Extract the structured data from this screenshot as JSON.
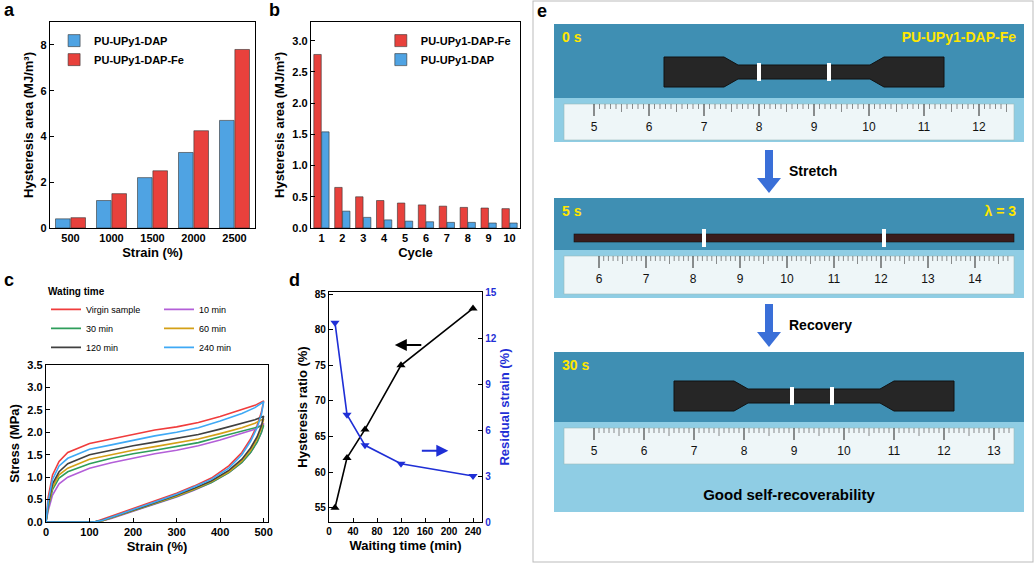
{
  "chart_data": [
    {
      "panel": "a",
      "type": "bar",
      "categories": [
        "500",
        "1000",
        "1500",
        "2000",
        "2500"
      ],
      "x_label": "Strain (%)",
      "y_label": "Hysteresis area (MJ/m³)",
      "ylim": [
        0,
        9
      ],
      "yticks": [
        0,
        2,
        4,
        6,
        8
      ],
      "legend": "top left",
      "grid": false,
      "series": [
        {
          "name": "PU-UPy1-DAP",
          "color": "#4fa3e3",
          "values": [
            0.4,
            1.2,
            2.2,
            3.3,
            4.7
          ]
        },
        {
          "name": "PU-UPy1-DAP-Fe",
          "color": "#e8413c",
          "values": [
            0.45,
            1.5,
            2.5,
            4.25,
            7.8
          ]
        }
      ]
    },
    {
      "panel": "b",
      "type": "bar",
      "categories": [
        "1",
        "2",
        "3",
        "4",
        "5",
        "6",
        "7",
        "8",
        "9",
        "10"
      ],
      "x_label": "Cycle",
      "y_label": "Hysteresis area (MJ/m³)",
      "ylim": [
        0,
        3.3
      ],
      "yticks": [
        {
          "value": 0,
          "label": "0.0"
        },
        {
          "value": 0.5,
          "label": "0.5"
        },
        {
          "value": 1,
          "label": "1.0"
        },
        {
          "value": 1.5,
          "label": "1.5"
        },
        {
          "value": 2,
          "label": "2.0"
        },
        {
          "value": 2.5,
          "label": "2.5"
        },
        {
          "value": 3,
          "label": "3.0"
        }
      ],
      "legend": "top right",
      "grid": false,
      "series": [
        {
          "name": "PU-UPy1-DAP-Fe",
          "color": "#e8413c",
          "values": [
            2.78,
            0.65,
            0.5,
            0.44,
            0.4,
            0.37,
            0.35,
            0.33,
            0.32,
            0.31
          ]
        },
        {
          "name": "PU-UPy1-DAP",
          "color": "#4fa3e3",
          "values": [
            1.54,
            0.27,
            0.17,
            0.13,
            0.11,
            0.1,
            0.09,
            0.09,
            0.08,
            0.08
          ]
        }
      ]
    },
    {
      "panel": "c",
      "type": "line",
      "x_label": "Strain (%)",
      "y_label": "Stress (MPa)",
      "xlim": [
        0,
        510
      ],
      "xticks": [
        0,
        100,
        200,
        300,
        400,
        500
      ],
      "ylim": [
        0,
        3.5
      ],
      "yticks": [
        {
          "value": 0,
          "label": "0.0"
        },
        {
          "value": 0.5,
          "label": "0.5"
        },
        {
          "value": 1,
          "label": "1.0"
        },
        {
          "value": 1.5,
          "label": "1.5"
        },
        {
          "value": 2,
          "label": "2.0"
        },
        {
          "value": 2.5,
          "label": "2.5"
        },
        {
          "value": 3,
          "label": "3.0"
        },
        {
          "value": 3.5,
          "label": "3.5"
        }
      ],
      "legend": "top",
      "legend_title": "Wating time",
      "grid": false,
      "series": [
        {
          "name": "Virgin sample",
          "color": "#f03c3c",
          "x": [
            0,
            5,
            15,
            30,
            50,
            100,
            150,
            200,
            250,
            300,
            350,
            400,
            450,
            480,
            500,
            495,
            485,
            470,
            450,
            420,
            380,
            340,
            300,
            260,
            220,
            180,
            150,
            130,
            115,
            108,
            0
          ],
          "values": [
            0,
            0.55,
            1.05,
            1.35,
            1.55,
            1.75,
            1.85,
            1.95,
            2.05,
            2.12,
            2.22,
            2.35,
            2.5,
            2.6,
            2.7,
            2.45,
            2.15,
            1.85,
            1.55,
            1.25,
            0.98,
            0.8,
            0.64,
            0.5,
            0.36,
            0.22,
            0.12,
            0.05,
            0.01,
            0,
            0
          ]
        },
        {
          "name": "10 min",
          "color": "#b35fd8",
          "x": [
            0,
            5,
            15,
            30,
            50,
            100,
            150,
            200,
            250,
            300,
            350,
            400,
            450,
            480,
            500,
            495,
            485,
            470,
            450,
            420,
            380,
            340,
            300,
            260,
            220,
            180,
            150,
            130,
            115,
            108,
            0
          ],
          "values": [
            0,
            0.25,
            0.6,
            0.85,
            1.0,
            1.2,
            1.32,
            1.42,
            1.52,
            1.6,
            1.7,
            1.83,
            1.97,
            2.07,
            2.2,
            2.0,
            1.78,
            1.55,
            1.33,
            1.1,
            0.88,
            0.71,
            0.56,
            0.43,
            0.3,
            0.17,
            0.08,
            0.03,
            0.01,
            0,
            0
          ]
        },
        {
          "name": "30 min",
          "color": "#2e9e5b",
          "x": [
            0,
            5,
            15,
            30,
            50,
            100,
            150,
            200,
            250,
            300,
            350,
            400,
            450,
            480,
            500,
            495,
            485,
            470,
            450,
            420,
            380,
            340,
            300,
            260,
            220,
            180,
            150,
            130,
            115,
            108,
            0
          ],
          "values": [
            0,
            0.32,
            0.72,
            0.98,
            1.12,
            1.3,
            1.42,
            1.52,
            1.6,
            1.68,
            1.77,
            1.9,
            2.02,
            2.1,
            2.15,
            2.0,
            1.78,
            1.55,
            1.33,
            1.1,
            0.88,
            0.72,
            0.57,
            0.44,
            0.31,
            0.18,
            0.08,
            0.03,
            0.01,
            0,
            0
          ]
        },
        {
          "name": "60 min",
          "color": "#d4a017",
          "x": [
            0,
            5,
            15,
            30,
            50,
            100,
            150,
            200,
            250,
            300,
            350,
            400,
            450,
            480,
            500,
            495,
            485,
            470,
            450,
            420,
            380,
            340,
            300,
            260,
            220,
            180,
            150,
            130,
            115,
            108,
            0
          ],
          "values": [
            0,
            0.35,
            0.78,
            1.05,
            1.2,
            1.4,
            1.5,
            1.6,
            1.68,
            1.76,
            1.85,
            1.97,
            2.1,
            2.2,
            2.3,
            2.1,
            1.85,
            1.6,
            1.36,
            1.12,
            0.9,
            0.73,
            0.58,
            0.45,
            0.32,
            0.19,
            0.09,
            0.03,
            0.01,
            0,
            0
          ]
        },
        {
          "name": "120 min",
          "color": "#404040",
          "x": [
            0,
            5,
            15,
            30,
            50,
            100,
            150,
            200,
            250,
            300,
            350,
            400,
            450,
            480,
            500,
            495,
            485,
            470,
            450,
            420,
            380,
            340,
            300,
            260,
            220,
            180,
            150,
            130,
            115,
            108,
            0
          ],
          "values": [
            0,
            0.4,
            0.85,
            1.12,
            1.3,
            1.5,
            1.6,
            1.7,
            1.78,
            1.86,
            1.95,
            2.07,
            2.2,
            2.28,
            2.36,
            2.15,
            1.9,
            1.65,
            1.4,
            1.15,
            0.92,
            0.75,
            0.6,
            0.46,
            0.33,
            0.2,
            0.1,
            0.04,
            0.01,
            0,
            0
          ]
        },
        {
          "name": "240 min",
          "color": "#3fa9f5",
          "x": [
            0,
            5,
            15,
            30,
            50,
            100,
            150,
            200,
            250,
            300,
            350,
            400,
            450,
            480,
            500,
            495,
            485,
            470,
            450,
            420,
            380,
            340,
            300,
            260,
            220,
            180,
            150,
            130,
            115,
            108,
            0
          ],
          "values": [
            0,
            0.45,
            0.95,
            1.25,
            1.42,
            1.62,
            1.72,
            1.82,
            1.92,
            2.0,
            2.1,
            2.25,
            2.42,
            2.55,
            2.68,
            2.4,
            2.1,
            1.8,
            1.5,
            1.2,
            0.95,
            0.78,
            0.62,
            0.48,
            0.34,
            0.2,
            0.1,
            0.04,
            0.01,
            0,
            0
          ]
        }
      ]
    },
    {
      "panel": "d",
      "type": "line",
      "x_label": "Waiting time (min)",
      "y_label": "Hysteresis ratio (%)",
      "y2_label": "Residual strain (%)",
      "x": [
        10,
        30,
        60,
        120,
        240
      ],
      "xlim": [
        0,
        255
      ],
      "xticks": [
        0,
        40,
        80,
        120,
        160,
        200,
        240
      ],
      "ylim": [
        53,
        85.3
      ],
      "yticks": [
        55,
        60,
        65,
        70,
        75,
        80,
        85
      ],
      "y2lim": [
        0,
        15
      ],
      "y2ticks": [
        0,
        3,
        6,
        9,
        12,
        15
      ],
      "grid": false,
      "series": [
        {
          "color": "#000000",
          "marker": "triangle-up",
          "values": [
            55,
            62,
            66,
            75,
            83
          ]
        },
        {
          "color": "#1f2fd6",
          "marker": "triangle-down",
          "axis": "y2",
          "values": [
            13,
            7,
            5,
            3.8,
            3
          ]
        }
      ]
    }
  ],
  "panel_e": {
    "panel": "e",
    "photos": [
      {
        "time": "0 s",
        "label": "PU-UPy1-DAP-Fe",
        "ruler": [
          5,
          6,
          7,
          8,
          9,
          10,
          11,
          12
        ]
      },
      {
        "time": "5 s",
        "label": "λ = 3",
        "ruler": [
          6,
          7,
          8,
          9,
          10,
          11,
          12,
          13,
          14
        ]
      },
      {
        "time": "30 s",
        "caption": "Good self-recoverability",
        "ruler": [
          5,
          6,
          7,
          8,
          9,
          10,
          11,
          12,
          13
        ]
      }
    ],
    "steps": [
      "Stretch",
      "Recovery"
    ]
  }
}
